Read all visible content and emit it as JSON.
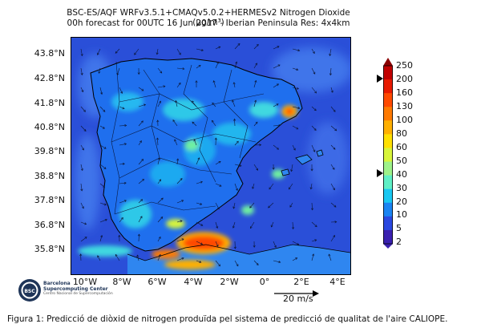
{
  "title": {
    "line1": "BSC-ES/AQF WRFv3.5.1+CMAQv5.0.2+HERMESv2 Nitrogen Dioxide (µg/m³)",
    "line2": "00h forecast for 00UTC 16 Jun 2017 - Iberian Peninsula Res: 4x4km"
  },
  "axes": {
    "lat_ticks": [
      "43.8°N",
      "42.8°N",
      "41.8°N",
      "40.8°N",
      "39.8°N",
      "38.8°N",
      "37.8°N",
      "36.8°N",
      "35.8°N"
    ],
    "lon_ticks": [
      "10°W",
      "8°W",
      "6°W",
      "4°W",
      "2°W",
      "0°",
      "2°E",
      "4°E"
    ]
  },
  "colorbar": {
    "labels": [
      "250",
      "200",
      "160",
      "130",
      "100",
      "80",
      "60",
      "50",
      "40",
      "30",
      "20",
      "10",
      "5",
      "2"
    ],
    "colors": [
      "#8b0000",
      "#c20000",
      "#e81a00",
      "#ff4a00",
      "#ff7a00",
      "#ffb000",
      "#ffe000",
      "#d8f53a",
      "#9ef28a",
      "#5ff0c6",
      "#19c8f2",
      "#1a84f2",
      "#2a48e0",
      "#3a20b0"
    ],
    "marked_values": [
      "200",
      "40"
    ]
  },
  "wind_reference": "20 m/s",
  "logo": {
    "badge": "BSC",
    "name_line1": "Barcelona",
    "name_line2": "Supercomputing Center",
    "subtitle": "Centro Nacional de Supercomputación"
  },
  "caption": "Figura 1: Predicció de diòxid de nitrogen produïda pel sistema de predicció de qualitat de l'aire CALIOPE."
}
